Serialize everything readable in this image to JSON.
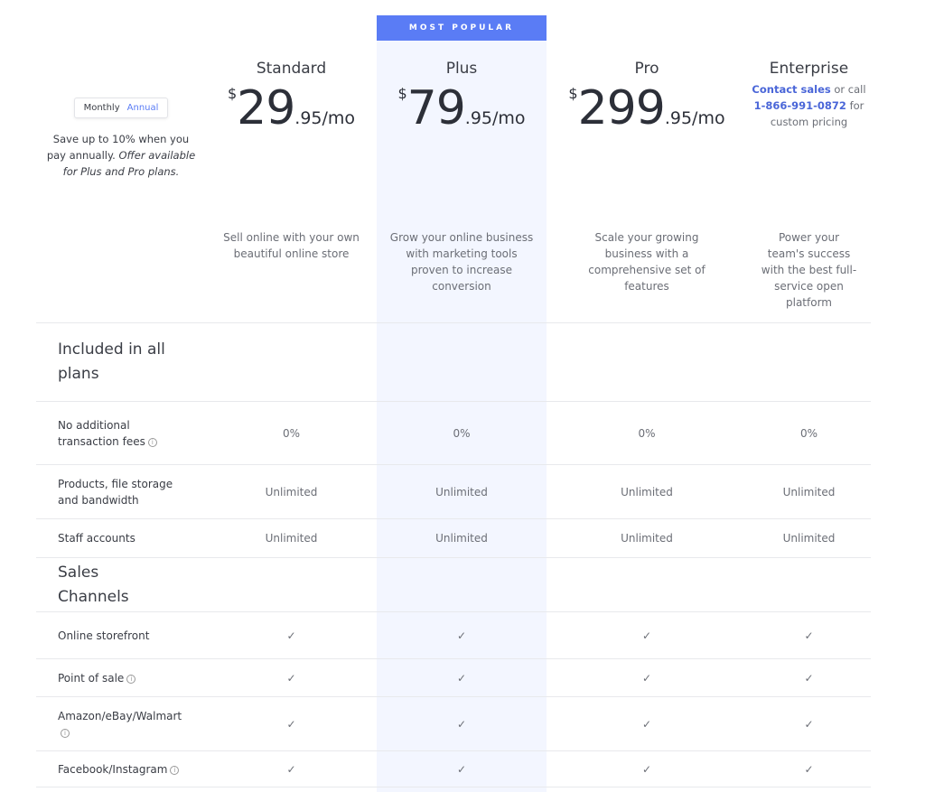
{
  "banner": "MOST POPULAR",
  "billing": {
    "monthly": "Monthly",
    "annual": "Annual",
    "save_text": "Save up to 10% when you pay annually.",
    "offer_text": "Offer available for Plus and Pro plans."
  },
  "plans": [
    {
      "name": "Standard",
      "currency": "$",
      "price_whole": "29",
      "price_rest": ".95/mo",
      "description": "Sell online with your own beautiful online store"
    },
    {
      "name": "Plus",
      "currency": "$",
      "price_whole": "79",
      "price_rest": ".95/mo",
      "description": "Grow your online business with marketing tools proven to increase conversion"
    },
    {
      "name": "Pro",
      "currency": "$",
      "price_whole": "299",
      "price_rest": ".95/mo",
      "description": "Scale your growing business with a comprehensive set of features"
    },
    {
      "name": "Enterprise",
      "contact_link": "Contact sales",
      "contact_or": " or call ",
      "phone": "1-866-991-0872",
      "contact_tail": " for custom pricing",
      "description": "Power your team's success with the best full-service open platform"
    }
  ],
  "sections": [
    {
      "title": "Included in all plans",
      "rows": [
        {
          "label": "No additional transaction fees",
          "info": true,
          "values": [
            "0%",
            "0%",
            "0%",
            "0%"
          ]
        },
        {
          "label": "Products, file storage and bandwidth",
          "values": [
            "Unlimited",
            "Unlimited",
            "Unlimited",
            "Unlimited"
          ]
        },
        {
          "label": "Staff accounts",
          "values": [
            "Unlimited",
            "Unlimited",
            "Unlimited",
            "Unlimited"
          ]
        }
      ]
    },
    {
      "title": "Sales Channels",
      "rows": [
        {
          "label": "Online storefront",
          "check": true
        },
        {
          "label": "Point of sale",
          "info": true,
          "check": true
        },
        {
          "label": "Amazon/eBay/Walmart",
          "info": true,
          "check": true
        },
        {
          "label": "Facebook/Instagram",
          "info": true,
          "check": true
        }
      ]
    }
  ],
  "colors": {
    "accent": "#5a7cf5",
    "highlight_bg": "#f3f6ff",
    "check": "#4a6ee0"
  },
  "icons": {
    "check": "check-icon",
    "info": "info-icon"
  }
}
